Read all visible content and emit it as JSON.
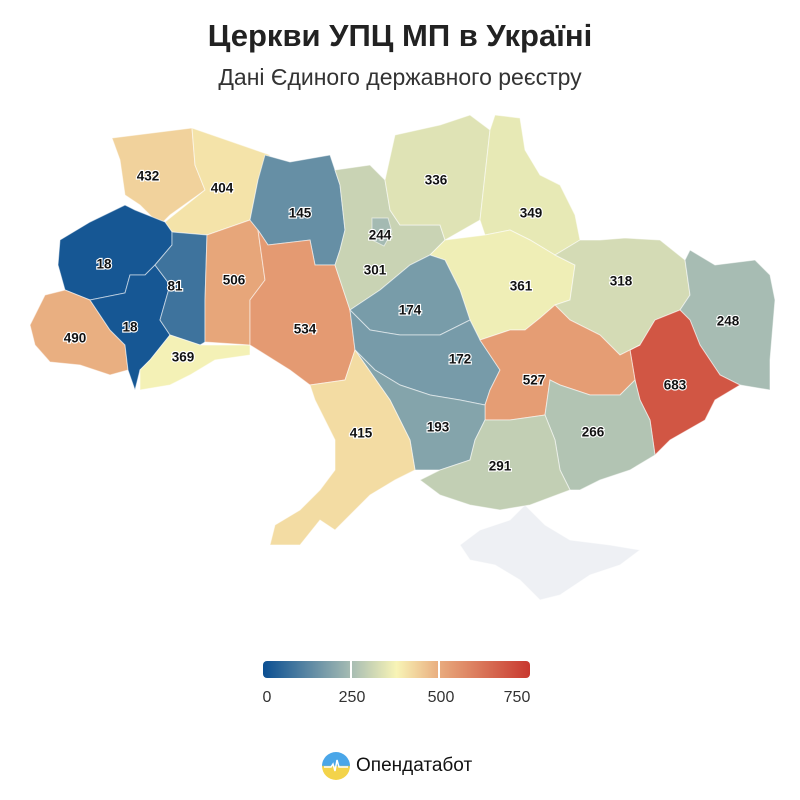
{
  "header": {
    "title": "Церкви УПЦ МП в Україні",
    "subtitle": "Дані Єдиного державного реєстру"
  },
  "map": {
    "regions": [
      {
        "id": "volyn",
        "value": 432
      },
      {
        "id": "rivne",
        "value": 404
      },
      {
        "id": "lviv",
        "value": 18
      },
      {
        "id": "ivano-frankivsk",
        "value": 18
      },
      {
        "id": "zakarpattia",
        "value": 490
      },
      {
        "id": "ternopil",
        "value": 81
      },
      {
        "id": "chernivtsi",
        "value": 369
      },
      {
        "id": "khmelnytskyi",
        "value": 506
      },
      {
        "id": "zhytomyr",
        "value": 145
      },
      {
        "id": "vinnytsia",
        "value": 534
      },
      {
        "id": "kyiv-oblast",
        "value": 301
      },
      {
        "id": "kyiv-city",
        "value": 244
      },
      {
        "id": "chernihiv",
        "value": 336
      },
      {
        "id": "sumy",
        "value": 349
      },
      {
        "id": "poltava",
        "value": 361
      },
      {
        "id": "kharkiv",
        "value": 318
      },
      {
        "id": "luhansk",
        "value": 248
      },
      {
        "id": "donetsk",
        "value": 683
      },
      {
        "id": "cherkasy",
        "value": 174
      },
      {
        "id": "kirovohrad",
        "value": 172
      },
      {
        "id": "dnipropetrovsk",
        "value": 527
      },
      {
        "id": "zaporizhzhia",
        "value": 266
      },
      {
        "id": "mykolaiv",
        "value": 193
      },
      {
        "id": "kherson",
        "value": 291
      },
      {
        "id": "odesa",
        "value": 415
      }
    ],
    "no_data_color": "#eef0f4"
  },
  "legend": {
    "min": 0,
    "max": 750,
    "ticks": [
      "0",
      "250",
      "500",
      "750"
    ],
    "color_stops": [
      {
        "value": 0,
        "color": "#0b4f92"
      },
      {
        "value": 250,
        "color": "#a8bdb3"
      },
      {
        "value": 375,
        "color": "#f8f4b6"
      },
      {
        "value": 500,
        "color": "#e8a97c"
      },
      {
        "value": 750,
        "color": "#c8382f"
      }
    ]
  },
  "brand": {
    "name": "Опендатабот"
  }
}
